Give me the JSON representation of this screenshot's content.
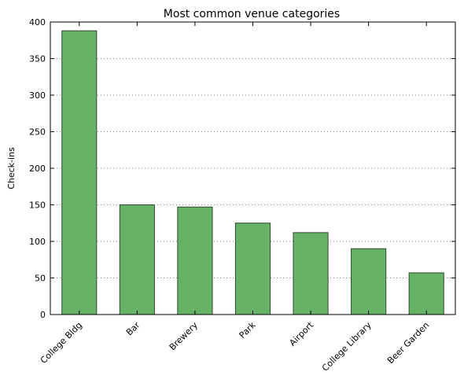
{
  "chart_data": {
    "type": "bar",
    "title": "Most common venue categories",
    "xlabel": "",
    "ylabel": "Check-ins",
    "categories": [
      "College Bldg",
      "Bar",
      "Brewery",
      "Park",
      "Airport",
      "College Library",
      "Beer Garden"
    ],
    "values": [
      388,
      150,
      147,
      125,
      112,
      90,
      57
    ],
    "ylim": [
      0,
      400
    ],
    "yticks": [
      0,
      50,
      100,
      150,
      200,
      250,
      300,
      350,
      400
    ],
    "ytick_labels": [
      "0",
      "50",
      "100",
      "150",
      "200",
      "250",
      "300",
      "350",
      "400"
    ],
    "grid": "y-dotted",
    "bar_color": "#66b266",
    "edge_color": "#2f4a2f"
  }
}
